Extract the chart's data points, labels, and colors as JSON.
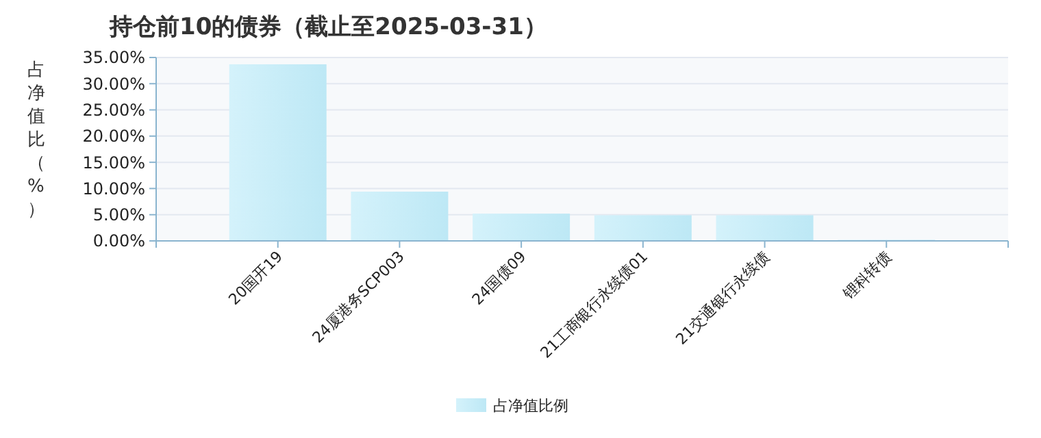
{
  "chart_data": {
    "type": "bar",
    "title": "持仓前10的债券（截止至2025-03-31）",
    "ylabel": "占净值比（%）",
    "categories": [
      "20国开19",
      "24厦港务SCP003",
      "24国债09",
      "21工商银行永续债01",
      "21交通银行永续债",
      "锂科转债"
    ],
    "series": [
      {
        "name": "占净值比例",
        "color": "#bde8f5",
        "values": [
          33.7,
          9.4,
          5.2,
          4.9,
          4.9,
          0.2
        ]
      }
    ],
    "ylim": [
      0,
      35
    ],
    "yticks": [
      {
        "value": 0,
        "label": "0.00%"
      },
      {
        "value": 5,
        "label": "5.00%"
      },
      {
        "value": 10,
        "label": "10.00%"
      },
      {
        "value": 15,
        "label": "15.00%"
      },
      {
        "value": 20,
        "label": "20.00%"
      },
      {
        "value": 25,
        "label": "25.00%"
      },
      {
        "value": 30,
        "label": "30.00%"
      },
      {
        "value": 35,
        "label": "35.00%"
      }
    ],
    "grid": "y",
    "legend": "bottom"
  }
}
